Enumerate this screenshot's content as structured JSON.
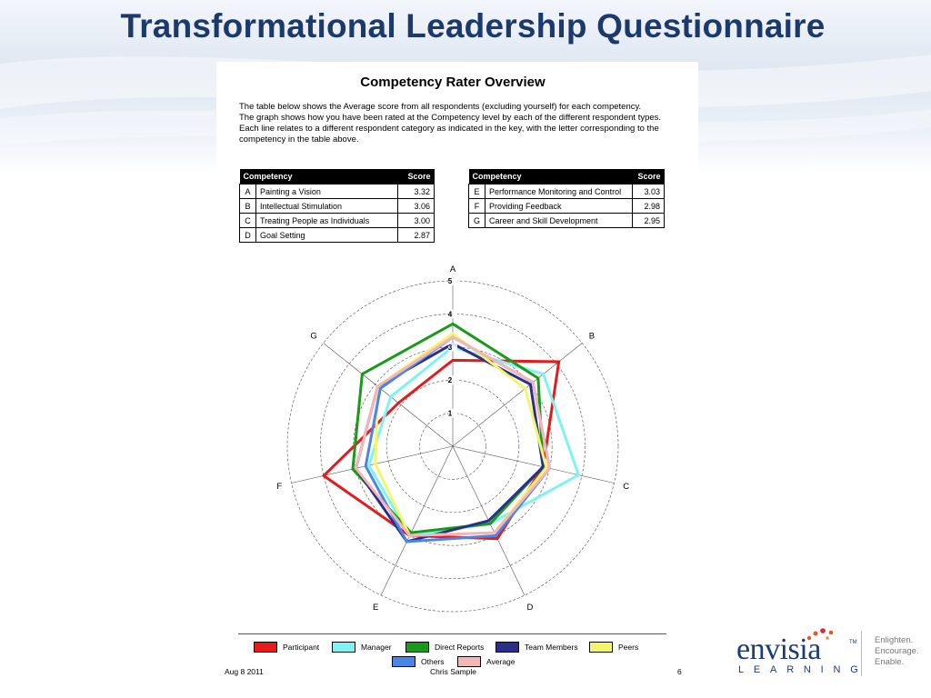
{
  "slide": {
    "title": "Transformational Leadership Questionnaire"
  },
  "document": {
    "heading": "Competency Rater Overview",
    "intro_1": "The table below shows the Average score from all respondents (excluding yourself) for each competency.",
    "intro_2": "The graph shows how you have been rated at the Competency level by each of the different respondent types. Each line relates to a different respondent category as indicated in the key, with the letter corresponding to the competency in the table above.",
    "table_header": {
      "competency": "Competency",
      "score": "Score"
    },
    "table_left": [
      {
        "letter": "A",
        "name": "Painting a Vision",
        "score": "3.32"
      },
      {
        "letter": "B",
        "name": "Intellectual Stimulation",
        "score": "3.06"
      },
      {
        "letter": "C",
        "name": "Treating People as Individuals",
        "score": "3.00"
      },
      {
        "letter": "D",
        "name": "Goal Setting",
        "score": "2.87"
      }
    ],
    "table_right": [
      {
        "letter": "E",
        "name": "Performance Monitoring and Control",
        "score": "3.03"
      },
      {
        "letter": "F",
        "name": "Providing Feedback",
        "score": "2.98"
      },
      {
        "letter": "G",
        "name": "Career and Skill Development",
        "score": "2.95"
      }
    ],
    "footer": {
      "date": "Aug 8 2011",
      "name": "Chris Sample",
      "page": "6"
    }
  },
  "chart_data": {
    "type": "radar",
    "axes": [
      "A",
      "B",
      "C",
      "D",
      "E",
      "F",
      "G"
    ],
    "rlim": [
      0,
      5
    ],
    "ticks": [
      "1",
      "2",
      "3",
      "4",
      "5"
    ],
    "grid": true,
    "legend_position": "bottom",
    "series": [
      {
        "name": "Participant",
        "color": "#e41a1c",
        "values": [
          2.6,
          4.1,
          2.8,
          3.1,
          3.0,
          4.0,
          2.1
        ]
      },
      {
        "name": "Manager",
        "color": "#7ff3f3",
        "values": [
          3.0,
          3.5,
          3.9,
          2.6,
          3.0,
          2.6,
          2.4
        ]
      },
      {
        "name": "Direct Reports",
        "color": "#1a9a1a",
        "values": [
          3.7,
          3.3,
          2.8,
          2.6,
          2.9,
          3.1,
          3.5
        ]
      },
      {
        "name": "Team Members",
        "color": "#2b2f8c",
        "values": [
          3.1,
          3.0,
          2.8,
          2.5,
          3.2,
          3.0,
          2.9
        ]
      },
      {
        "name": "Peers",
        "color": "#f5f56a",
        "values": [
          3.4,
          2.8,
          2.9,
          2.9,
          3.0,
          2.4,
          2.9
        ]
      },
      {
        "name": "Others",
        "color": "#4a86e8",
        "values": [
          3.3,
          3.1,
          3.0,
          3.0,
          3.2,
          2.7,
          2.8
        ]
      },
      {
        "name": "Average",
        "color": "#f4b6b6",
        "values": [
          3.3,
          3.1,
          3.0,
          2.9,
          3.0,
          3.0,
          2.9
        ]
      }
    ]
  },
  "logo": {
    "word": "envisia",
    "tm": "TM",
    "sub": "LEARNING",
    "tagline": [
      "Enlighten.",
      "Encourage.",
      "Enable."
    ]
  }
}
